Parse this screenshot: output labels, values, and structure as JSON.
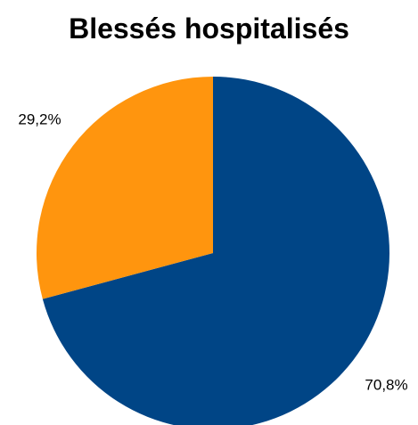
{
  "chart_data": {
    "type": "pie",
    "title": "Blessés hospitalisés",
    "slices": [
      {
        "value": 70.8,
        "label": "70,8%",
        "color": "#004586"
      },
      {
        "value": 29.2,
        "label": "29,2%",
        "color": "#ff950e"
      }
    ],
    "start_angle_deg": 0,
    "direction": "clockwise"
  }
}
